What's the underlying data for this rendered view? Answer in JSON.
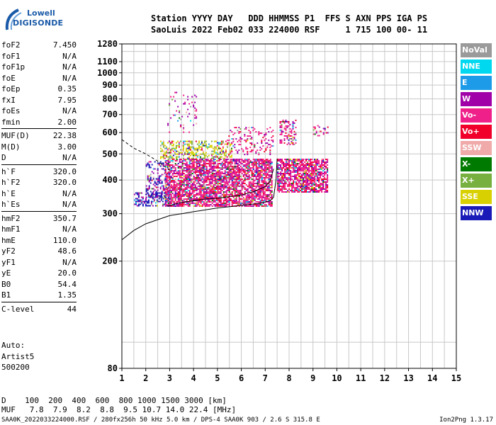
{
  "logo": {
    "line1": "Lowell",
    "line2": "DIGISONDE"
  },
  "header": {
    "line1": "Station YYYY DAY   DDD HHMMSS P1  FFS S AXN PPS IGA PS",
    "line2": "SaoLuis 2022 Feb02 033 224000 RSF     1 715 100 00- 11"
  },
  "params": [
    {
      "k": "foF2",
      "v": "7.450"
    },
    {
      "k": "foF1",
      "v": "N/A"
    },
    {
      "k": "foF1p",
      "v": "N/A"
    },
    {
      "k": "foE",
      "v": "N/A"
    },
    {
      "k": "foEp",
      "v": "0.35"
    },
    {
      "k": "fxI",
      "v": "7.95"
    },
    {
      "k": "foEs",
      "v": "N/A"
    },
    {
      "k": "fmin",
      "v": "2.00"
    },
    {
      "k": "MUF(D)",
      "v": "22.38"
    },
    {
      "k": "M(D)",
      "v": "3.00"
    },
    {
      "k": "D",
      "v": "N/A"
    },
    {
      "k": "h`F",
      "v": "320.0"
    },
    {
      "k": "h`F2",
      "v": "320.0"
    },
    {
      "k": "h`E",
      "v": "N/A"
    },
    {
      "k": "h`Es",
      "v": "N/A"
    },
    {
      "k": "hmF2",
      "v": "350.7"
    },
    {
      "k": "hmF1",
      "v": "N/A"
    },
    {
      "k": "hmE",
      "v": "110.0"
    },
    {
      "k": "yF2",
      "v": "48.6"
    },
    {
      "k": "yF1",
      "v": "N/A"
    },
    {
      "k": "yE",
      "v": "20.0"
    },
    {
      "k": "B0",
      "v": "54.4"
    },
    {
      "k": "B1",
      "v": "1.35"
    },
    {
      "k": "C-level",
      "v": "44"
    }
  ],
  "auto": {
    "l1": "Auto:",
    "l2": "Artist5",
    "l3": "500200"
  },
  "legend": [
    {
      "label": "NoVal",
      "color": "#9a9a9a"
    },
    {
      "label": "NNE",
      "color": "#00d8f0"
    },
    {
      "label": "E",
      "color": "#1e9be8"
    },
    {
      "label": "W",
      "color": "#a000a8"
    },
    {
      "label": "Vo-",
      "color": "#f0208a"
    },
    {
      "label": "Vo+",
      "color": "#f0002a"
    },
    {
      "label": "SSW",
      "color": "#f0aaaa"
    },
    {
      "label": "X-",
      "color": "#007a00"
    },
    {
      "label": "X+",
      "color": "#78b040"
    },
    {
      "label": "SSE",
      "color": "#d8d000"
    },
    {
      "label": "NNW",
      "color": "#1a1ab8"
    }
  ],
  "bottom": {
    "d_line": "D    100  200  400  600  800 1000 1500 3000 [km]",
    "muf_line": "MUF   7.8  7.9  8.2  8.8  9.5 10.7 14.0 22.4 [MHz]",
    "footer": "SAA0K_2022033224000.RSF / 280fx256h 50 kHz 5.0 km / DPS-4 SAA0K 903 / 2.6 S 315.8 E",
    "version": "Ion2Png 1.3.17"
  },
  "chart_data": {
    "type": "scatter",
    "xlim": [
      1,
      15
    ],
    "ylim": [
      80,
      1280
    ],
    "xticks": [
      "1",
      "2",
      "3",
      "4",
      "5",
      "6",
      "7",
      "8",
      "9",
      "10",
      "11",
      "12",
      "13",
      "14",
      "15"
    ],
    "yticks": [
      "80",
      "200",
      "300",
      "400",
      "500",
      "600",
      "700",
      "800",
      "900",
      "1000",
      "1100",
      "1280"
    ],
    "grid": true,
    "ylog": true,
    "echo_clusters": [
      {
        "fmin": 1.5,
        "fmax": 3.0,
        "hmin": 320,
        "hmax": 360,
        "density": 0.5
      },
      {
        "fmin": 2.0,
        "fmax": 3.0,
        "hmin": 340,
        "hmax": 470,
        "density": 0.35
      },
      {
        "fmin": 2.6,
        "fmax": 5.6,
        "hmin": 480,
        "hmax": 560,
        "density": 0.45
      },
      {
        "fmin": 2.8,
        "fmax": 7.3,
        "hmin": 320,
        "hmax": 480,
        "density": 0.75
      },
      {
        "fmin": 2.9,
        "fmax": 4.1,
        "hmin": 600,
        "hmax": 850,
        "density": 0.12
      },
      {
        "fmin": 4.4,
        "fmax": 5.9,
        "hmin": 400,
        "hmax": 430,
        "density": 0.4
      },
      {
        "fmin": 5.4,
        "fmax": 7.3,
        "hmin": 500,
        "hmax": 630,
        "density": 0.2
      },
      {
        "fmin": 7.5,
        "fmax": 9.6,
        "hmin": 360,
        "hmax": 480,
        "density": 0.75
      },
      {
        "fmin": 7.6,
        "fmax": 8.3,
        "hmin": 540,
        "hmax": 670,
        "density": 0.35
      },
      {
        "fmin": 9.0,
        "fmax": 9.6,
        "hmin": 580,
        "hmax": 640,
        "density": 0.2
      }
    ],
    "trace": {
      "lower": [
        [
          1.0,
          240
        ],
        [
          1.5,
          260
        ],
        [
          2.0,
          275
        ],
        [
          2.5,
          285
        ],
        [
          3.0,
          295
        ],
        [
          3.5,
          300
        ],
        [
          4.0,
          305
        ],
        [
          5.0,
          315
        ],
        [
          6.0,
          322
        ],
        [
          6.8,
          328
        ],
        [
          7.2,
          335
        ],
        [
          7.35,
          345
        ],
        [
          7.45,
          400
        ],
        [
          7.5,
          480
        ]
      ],
      "upper": [
        [
          2.9,
          320
        ],
        [
          3.5,
          330
        ],
        [
          4.0,
          335
        ],
        [
          4.5,
          340
        ],
        [
          5.0,
          342
        ],
        [
          6.0,
          352
        ],
        [
          6.5,
          362
        ],
        [
          7.0,
          378
        ],
        [
          7.2,
          395
        ],
        [
          7.35,
          440
        ]
      ],
      "dashed": [
        [
          1.0,
          565
        ],
        [
          1.5,
          525
        ],
        [
          2.0,
          500
        ],
        [
          2.5,
          470
        ],
        [
          3.0,
          435
        ]
      ]
    }
  }
}
